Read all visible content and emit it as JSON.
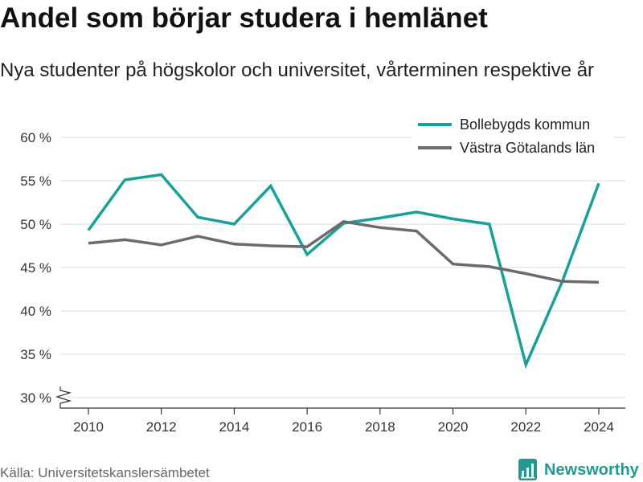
{
  "chart_data": {
    "type": "line",
    "title": "Andel som börjar studera i hemlänet",
    "subtitle": "Nya studenter på högskolor och universitet, vårterminen respektive år",
    "x": [
      2010,
      2011,
      2012,
      2013,
      2014,
      2015,
      2016,
      2017,
      2018,
      2019,
      2020,
      2021,
      2022,
      2023,
      2024
    ],
    "xlim": [
      2010,
      2024
    ],
    "x_ticks": [
      2010,
      2012,
      2014,
      2016,
      2018,
      2020,
      2022,
      2024
    ],
    "x_tick_labels": [
      "2010",
      "2012",
      "2014",
      "2016",
      "2018",
      "2020",
      "2022",
      "2024"
    ],
    "ylim": [
      30,
      60
    ],
    "y_ticks": [
      30,
      35,
      40,
      45,
      50,
      55,
      60
    ],
    "y_tick_labels": [
      "30 %",
      "35 %",
      "40 %",
      "45 %",
      "50 %",
      "55 %",
      "60 %"
    ],
    "y_axis_break": true,
    "grid": true,
    "legend_position": "top-right",
    "series": [
      {
        "name": "Bollebygds kommun",
        "color": "#17a297",
        "values": [
          49.3,
          55.1,
          55.7,
          50.8,
          50.0,
          54.4,
          46.5,
          50.1,
          50.7,
          51.4,
          50.6,
          50.0,
          33.8,
          43.4,
          54.7
        ]
      },
      {
        "name": "Västra Götalands län",
        "color": "#6b6b6b",
        "values": [
          47.8,
          48.2,
          47.6,
          48.6,
          47.7,
          47.5,
          47.4,
          50.3,
          49.6,
          49.2,
          45.4,
          45.1,
          44.3,
          43.4,
          43.3
        ]
      }
    ]
  },
  "source": "Källa: Universitetskanslersämbetet",
  "brand": {
    "name": "Newsworthy",
    "icon": "newsworthy-logo-icon",
    "color": "#229a91"
  }
}
